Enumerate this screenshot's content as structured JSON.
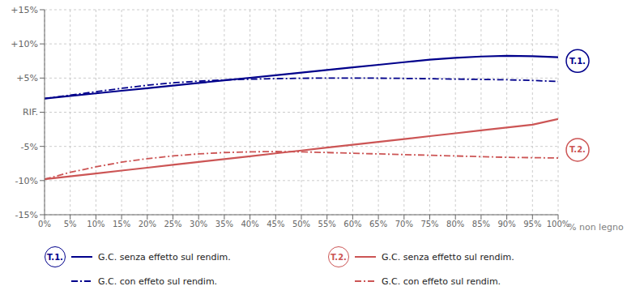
{
  "chart_data": {
    "type": "line",
    "xlabel": "% non legno",
    "x": [
      0,
      5,
      10,
      15,
      20,
      25,
      30,
      35,
      40,
      45,
      50,
      55,
      60,
      65,
      70,
      75,
      80,
      85,
      90,
      95,
      100
    ],
    "xlim": [
      0,
      100
    ],
    "xticks": [
      {
        "value": 0,
        "label": "0%"
      },
      {
        "value": 5,
        "label": "5%"
      },
      {
        "value": 10,
        "label": "10%"
      },
      {
        "value": 15,
        "label": "15%"
      },
      {
        "value": 20,
        "label": "20%"
      },
      {
        "value": 25,
        "label": "25%"
      },
      {
        "value": 30,
        "label": "30%"
      },
      {
        "value": 35,
        "label": "35%"
      },
      {
        "value": 40,
        "label": "40%"
      },
      {
        "value": 45,
        "label": "45%"
      },
      {
        "value": 50,
        "label": "50%"
      },
      {
        "value": 55,
        "label": "55%"
      },
      {
        "value": 60,
        "label": "60%"
      },
      {
        "value": 65,
        "label": "65%"
      },
      {
        "value": 70,
        "label": "70%"
      },
      {
        "value": 75,
        "label": "75%"
      },
      {
        "value": 80,
        "label": "80%"
      },
      {
        "value": 85,
        "label": "85%"
      },
      {
        "value": 90,
        "label": "90%"
      },
      {
        "value": 95,
        "label": "95%"
      },
      {
        "value": 100,
        "label": "100%"
      }
    ],
    "ylim": [
      -15,
      15
    ],
    "yticks": [
      {
        "value": -15,
        "label": "-15%"
      },
      {
        "value": -10,
        "label": "-10%"
      },
      {
        "value": -5,
        "label": "-5%"
      },
      {
        "value": 0,
        "label": "RIF."
      },
      {
        "value": 5,
        "label": "+5%"
      },
      {
        "value": 10,
        "label": "+10%"
      },
      {
        "value": 15,
        "label": "+15%"
      }
    ],
    "grid": true,
    "series": [
      {
        "name": "G.C. senza effetto sul rendim.",
        "group": "T.1.",
        "color": "#00008B",
        "line_style": "solid",
        "values": [
          2.0,
          2.38,
          2.76,
          3.14,
          3.52,
          3.9,
          4.28,
          4.66,
          5.04,
          5.42,
          5.8,
          6.18,
          6.56,
          6.94,
          7.32,
          7.7,
          7.95,
          8.15,
          8.25,
          8.2,
          8.05
        ]
      },
      {
        "name": "G.C. con effeto sul rendim.",
        "group": "T.1.",
        "color": "#00008B",
        "line_style": "dashdot",
        "values": [
          2.0,
          2.5,
          3.0,
          3.5,
          3.95,
          4.3,
          4.55,
          4.72,
          4.84,
          4.92,
          4.97,
          5.0,
          5.0,
          4.98,
          4.95,
          4.9,
          4.85,
          4.8,
          4.75,
          4.65,
          4.5
        ]
      },
      {
        "name": "G.C. senza effetto sul rendim.",
        "group": "T.2.",
        "color": "#CC5555",
        "line_style": "solid",
        "values": [
          -9.8,
          -9.38,
          -8.96,
          -8.54,
          -8.12,
          -7.7,
          -7.28,
          -6.86,
          -6.44,
          -6.02,
          -5.6,
          -5.18,
          -4.76,
          -4.34,
          -3.92,
          -3.5,
          -3.08,
          -2.66,
          -2.24,
          -1.82,
          -1.0
        ]
      },
      {
        "name": "G.C. con effeto sul rendim.",
        "group": "T.2.",
        "color": "#CC5555",
        "line_style": "dashdot",
        "values": [
          -9.8,
          -8.8,
          -8.0,
          -7.3,
          -6.8,
          -6.4,
          -6.1,
          -5.9,
          -5.8,
          -5.75,
          -5.8,
          -5.9,
          -6.0,
          -6.1,
          -6.2,
          -6.3,
          -6.4,
          -6.5,
          -6.6,
          -6.65,
          -6.7
        ]
      }
    ],
    "annotations": [
      {
        "text": "T.1.",
        "x": 100,
        "y": 7.5,
        "color": "#00008B"
      },
      {
        "text": "T.2.",
        "x": 100,
        "y": -5.5,
        "color": "#CC5555"
      }
    ]
  }
}
